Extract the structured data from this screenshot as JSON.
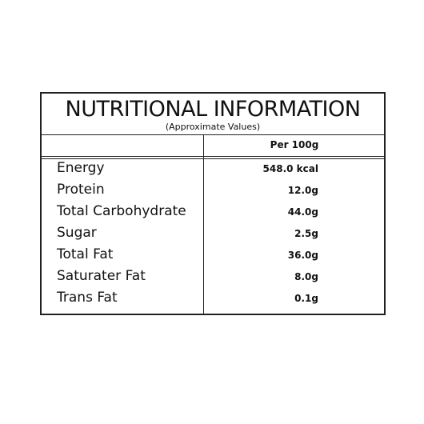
{
  "header": {
    "title": "NUTRITIONAL INFORMATION",
    "subtitle": "(Approximate Values)"
  },
  "table": {
    "column_header": "Per 100g",
    "rows": [
      [
        "Energy",
        "548.0 kcal"
      ],
      [
        "Protein",
        "12.0g"
      ],
      [
        "Total Carbohydrate",
        "44.0g"
      ],
      [
        "Sugar",
        "2.5g"
      ],
      [
        "Total Fat",
        "36.0g"
      ],
      [
        "Saturater Fat",
        "8.0g"
      ],
      [
        "Trans Fat",
        "0.1g"
      ]
    ]
  }
}
